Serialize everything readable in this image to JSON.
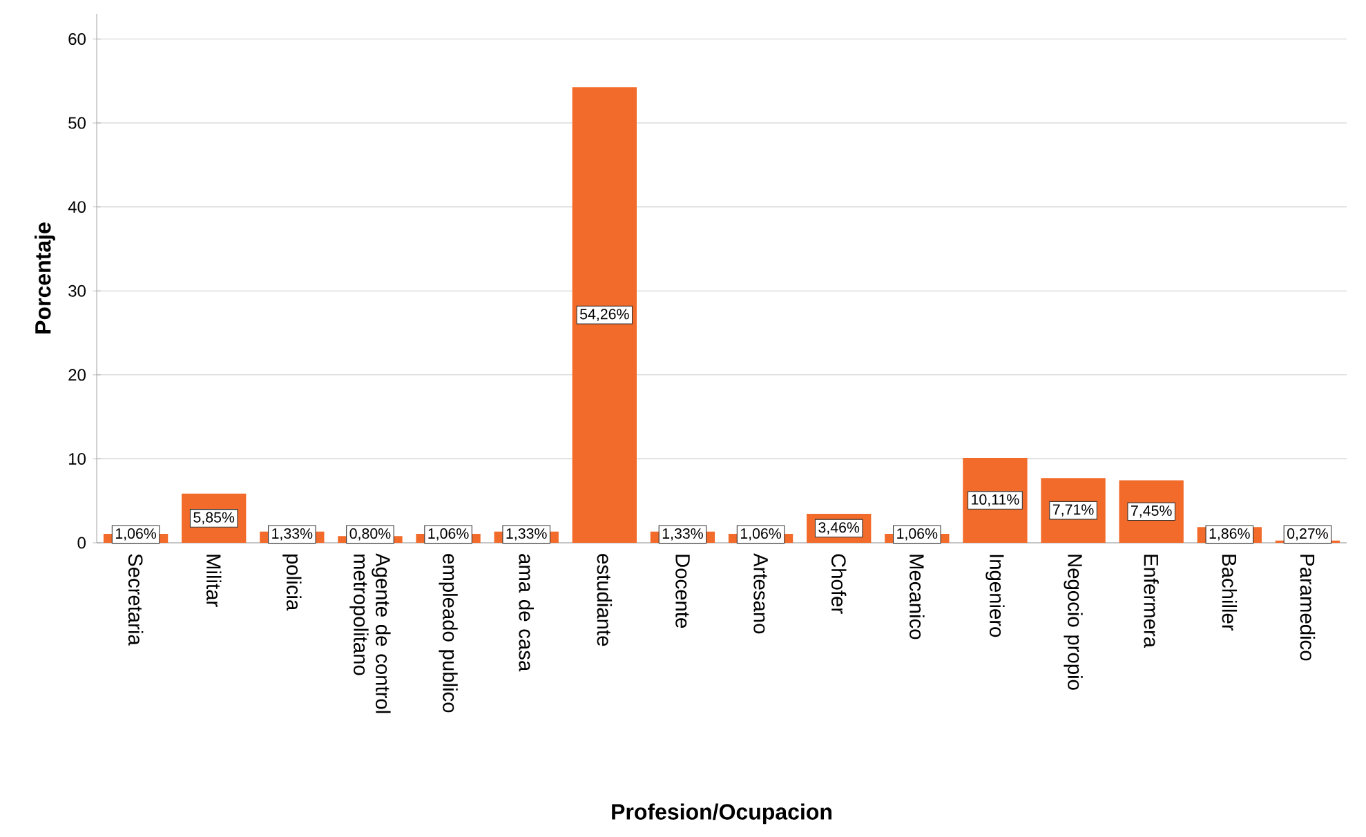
{
  "chart_data": {
    "type": "bar",
    "xlabel": "Profesion/Ocupacion",
    "ylabel": "Porcentaje",
    "categories": [
      "Secretaria",
      "Militar",
      "policia",
      "Agente de control metropolitano",
      "empleado publico",
      "ama de casa",
      "estudiante",
      "Docente",
      "Artesano",
      "Chofer",
      "Mecanico",
      "Ingeniero",
      "Negocio propio",
      "Enfermera",
      "Bachiller",
      "Paramedico"
    ],
    "values": [
      1.06,
      5.85,
      1.33,
      0.8,
      1.06,
      1.33,
      54.26,
      1.33,
      1.06,
      3.46,
      1.06,
      10.11,
      7.71,
      7.45,
      1.86,
      0.27
    ],
    "value_labels": [
      "1,06%",
      "5,85%",
      "1,33%",
      "0,80%",
      "1,06%",
      "1,33%",
      "54,26%",
      "1,33%",
      "1,06%",
      "3,46%",
      "1,06%",
      "10,11%",
      "7,71%",
      "7,45%",
      "1,86%",
      "0,27%"
    ],
    "color": "#f26b2a",
    "ylim": [
      0,
      63
    ],
    "yticks": [
      0,
      10,
      20,
      30,
      40,
      50,
      60
    ],
    "grid": "y"
  }
}
